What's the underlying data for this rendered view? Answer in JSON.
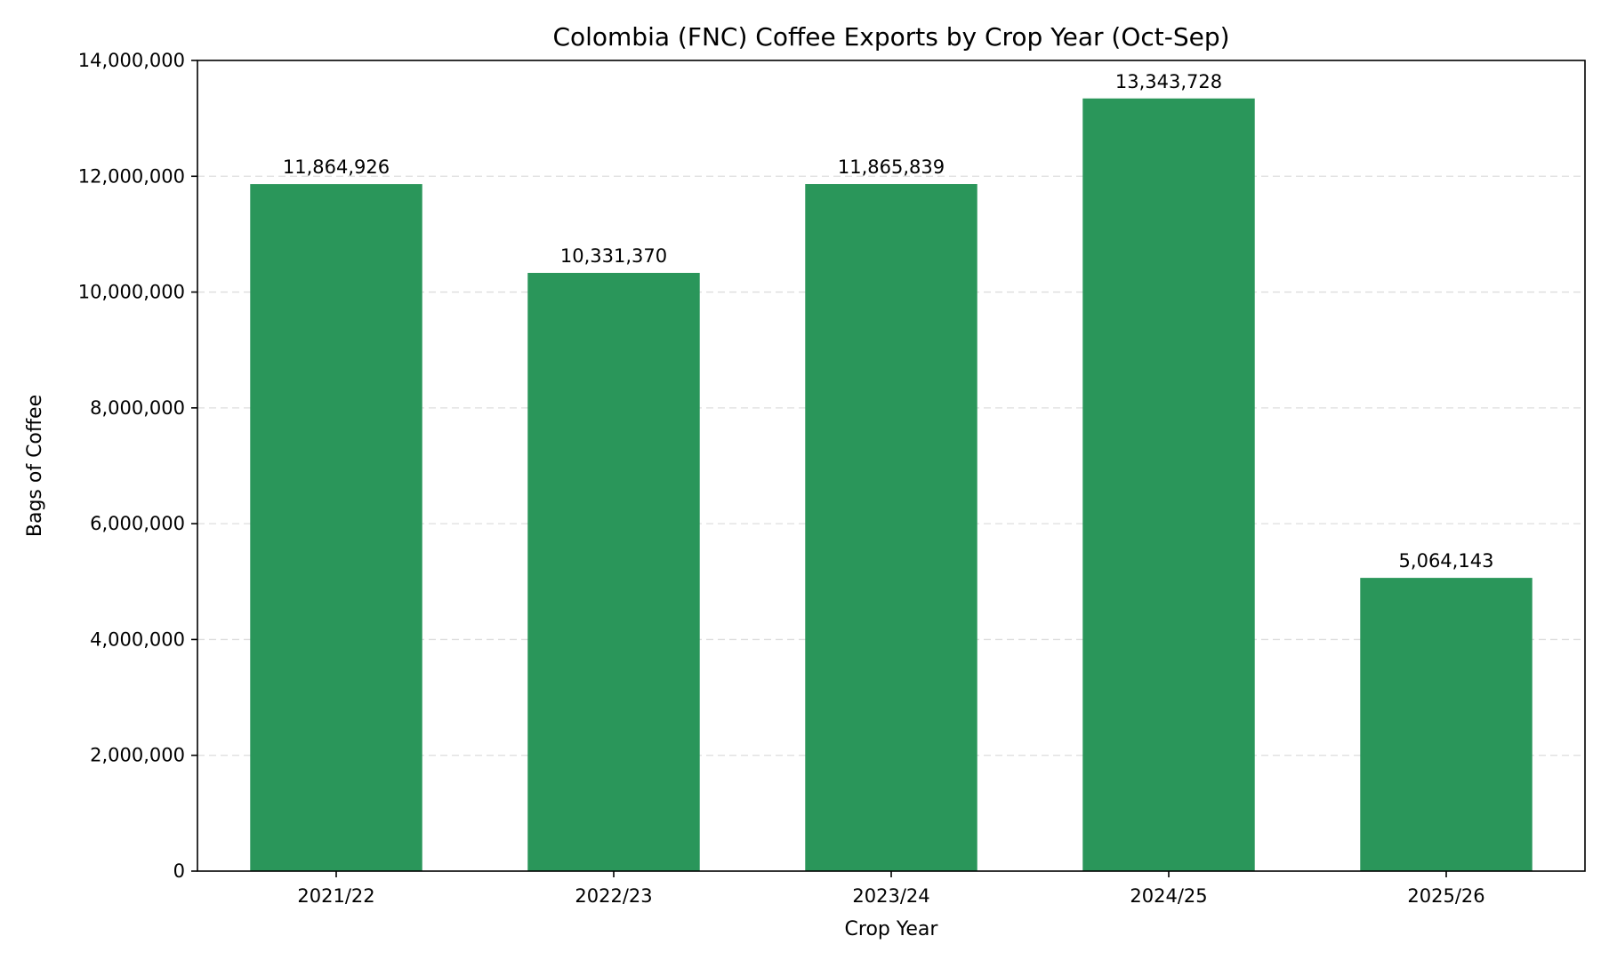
{
  "chart_data": {
    "type": "bar",
    "title": "Colombia (FNC) Coffee Exports by Crop Year (Oct-Sep)",
    "xlabel": "Crop Year",
    "ylabel": "Bags of Coffee",
    "categories": [
      "2021/22",
      "2022/23",
      "2023/24",
      "2024/25",
      "2025/26"
    ],
    "values": [
      11864926,
      10331370,
      11865839,
      13343728,
      5064143
    ],
    "data_labels": [
      "11,864,926",
      "10,331,370",
      "11,865,839",
      "13,343,728",
      "5,064,143"
    ],
    "ylim": [
      0,
      14000000
    ],
    "yticks": [
      0,
      2000000,
      4000000,
      6000000,
      8000000,
      10000000,
      12000000,
      14000000
    ],
    "ytick_labels": [
      "0",
      "2,000,000",
      "4,000,000",
      "6,000,000",
      "8,000,000",
      "10,000,000",
      "12,000,000",
      "14,000,000"
    ],
    "grid": "y-dashed",
    "bar_color": "#2a965a"
  }
}
